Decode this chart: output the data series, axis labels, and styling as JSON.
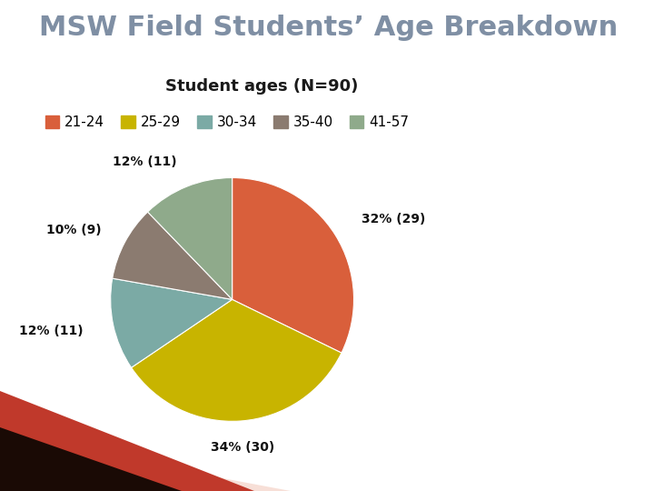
{
  "title": "MSW Field Students’ Age Breakdown",
  "subtitle": "Student ages (N=90)",
  "labels": [
    "21-24",
    "25-29",
    "30-34",
    "35-40",
    "41-57"
  ],
  "values": [
    29,
    30,
    11,
    9,
    11
  ],
  "percentages": [
    32,
    34,
    12,
    10,
    12
  ],
  "colors": [
    "#D95F3B",
    "#C8B400",
    "#7BAAA5",
    "#8B7B70",
    "#8FAA8B"
  ],
  "title_color": "#7F8FA4",
  "subtitle_color": "#1A1A1A",
  "label_color": "#111111",
  "background_color": "#FFFFFF",
  "title_fontsize": 22,
  "subtitle_fontsize": 13,
  "legend_fontsize": 11,
  "label_fontsize": 10,
  "startangle": 90
}
